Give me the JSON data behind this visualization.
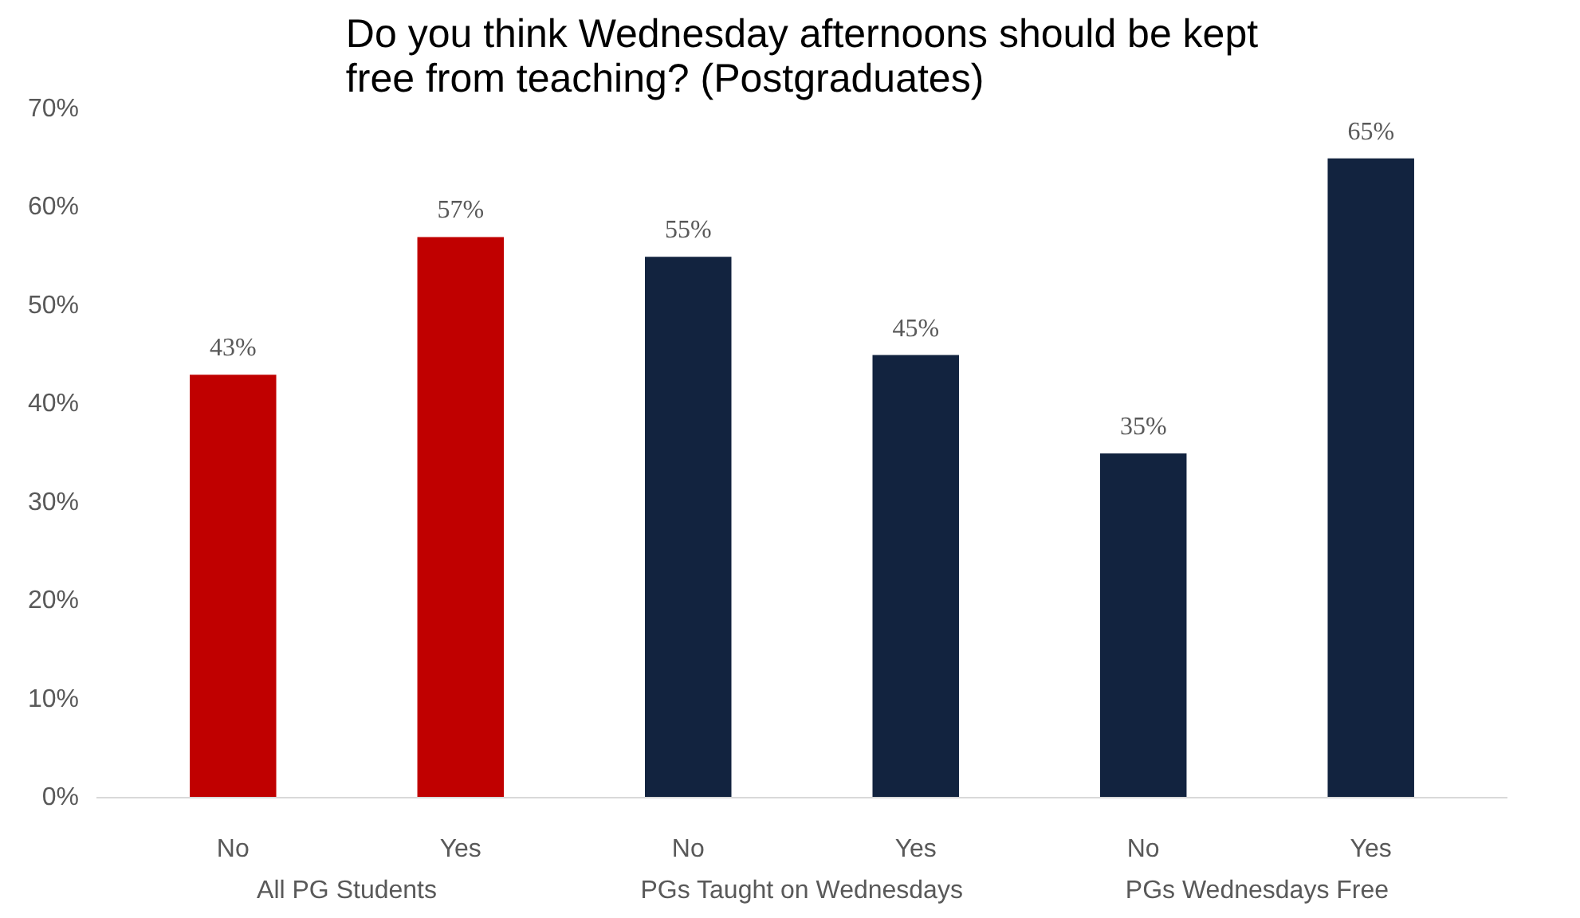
{
  "chart_data": {
    "type": "bar",
    "title": "Do you think Wednesday afternoons should be kept\nfree from teaching? (Postgraduates)",
    "categories": [
      "No",
      "Yes",
      "No",
      "Yes",
      "No",
      "Yes"
    ],
    "values": [
      43,
      57,
      55,
      45,
      35,
      65
    ],
    "colors": [
      "#c00000",
      "#c00000",
      "#12233f",
      "#12233f",
      "#12233f",
      "#12233f"
    ],
    "value_labels": [
      "43%",
      "57%",
      "55%",
      "45%",
      "35%",
      "65%"
    ],
    "annotations": [
      "All PG Students",
      "PGs Taught on Wednesdays",
      "PGs Wednesdays Free"
    ],
    "ylim": [
      0,
      70
    ],
    "yticks": [
      {
        "value": 0,
        "label": "0%"
      },
      {
        "value": 10,
        "label": "10%"
      },
      {
        "value": 20,
        "label": "20%"
      },
      {
        "value": 30,
        "label": "30%"
      },
      {
        "value": 40,
        "label": "40%"
      },
      {
        "value": 50,
        "label": "50%"
      },
      {
        "value": 60,
        "label": "60%"
      },
      {
        "value": 70,
        "label": "70%"
      }
    ],
    "grid": false
  }
}
